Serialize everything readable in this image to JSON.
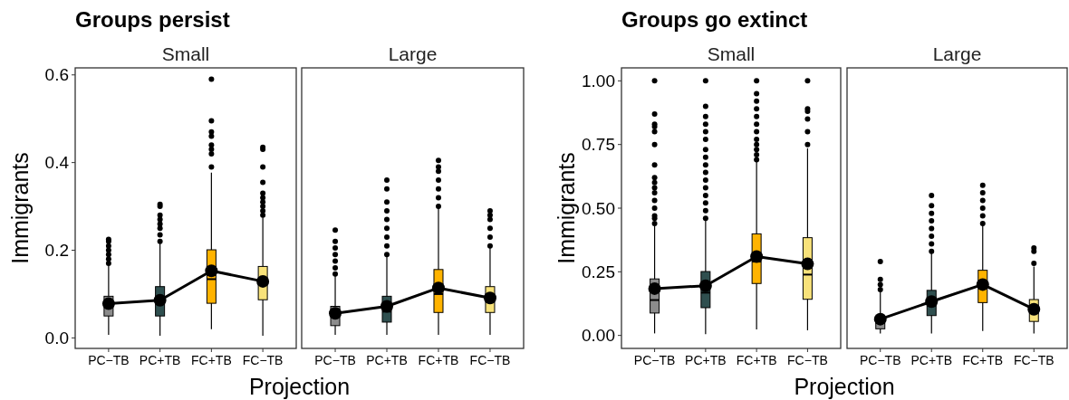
{
  "chart_data": [
    {
      "type": "box",
      "title": "Groups persist",
      "subtitle": "Small",
      "xlabel": "Projection",
      "ylabel": "Immigrants",
      "categories": [
        "PC−TB",
        "PC+TB",
        "FC+TB",
        "FC−TB"
      ],
      "ylim": [
        -0.024,
        0.616
      ],
      "yticks": [
        {
          "value": 0,
          "label": "0.0"
        },
        {
          "value": 0.2,
          "label": "0.2"
        },
        {
          "value": 0.4,
          "label": "0.4"
        },
        {
          "value": 0.6,
          "label": "0.6"
        }
      ],
      "grid": false,
      "colors": [
        "#8c8c8c",
        "#2f4f4f",
        "#ffb300",
        "#f8e27a"
      ],
      "boxes": [
        {
          "low": 0.007,
          "q1": 0.05,
          "median": 0.07,
          "q3": 0.095,
          "high": 0.165,
          "outliers": [
            0.17,
            0.18,
            0.19,
            0.2,
            0.21,
            0.22,
            0.225
          ]
        },
        {
          "low": 0.005,
          "q1": 0.05,
          "median": 0.085,
          "q3": 0.117,
          "high": 0.217,
          "outliers": [
            0.22,
            0.235,
            0.25,
            0.26,
            0.27,
            0.28,
            0.3,
            0.305
          ]
        },
        {
          "low": 0.02,
          "q1": 0.079,
          "median": 0.134,
          "q3": 0.201,
          "high": 0.377,
          "outliers": [
            0.39,
            0.42,
            0.43,
            0.44,
            0.46,
            0.47,
            0.495,
            0.59
          ]
        },
        {
          "low": 0.005,
          "q1": 0.087,
          "median": 0.125,
          "q3": 0.163,
          "high": 0.275,
          "outliers": [
            0.28,
            0.29,
            0.3,
            0.31,
            0.32,
            0.33,
            0.355,
            0.39,
            0.43,
            0.435
          ]
        }
      ],
      "series": [
        {
          "type": "line",
          "color": "#000000",
          "marker": "circle",
          "values": [
            0.078,
            0.086,
            0.153,
            0.129
          ]
        }
      ]
    },
    {
      "type": "box",
      "subtitle": "Large",
      "categories": [
        "PC−TB",
        "PC+TB",
        "FC+TB",
        "FC−TB"
      ],
      "ylim": [
        -0.024,
        0.616
      ],
      "tick_labels": "x",
      "grid": false,
      "colors": [
        "#8c8c8c",
        "#2f4f4f",
        "#ffb300",
        "#f8e27a"
      ],
      "boxes": [
        {
          "low": 0.007,
          "q1": 0.028,
          "median": 0.05,
          "q3": 0.072,
          "high": 0.141,
          "outliers": [
            0.146,
            0.16,
            0.175,
            0.19,
            0.205,
            0.22,
            0.246
          ]
        },
        {
          "low": 0.007,
          "q1": 0.036,
          "median": 0.06,
          "q3": 0.095,
          "high": 0.189,
          "outliers": [
            0.19,
            0.21,
            0.23,
            0.25,
            0.27,
            0.29,
            0.31,
            0.34,
            0.36
          ]
        },
        {
          "low": 0.007,
          "q1": 0.058,
          "median": 0.1,
          "q3": 0.156,
          "high": 0.3,
          "outliers": [
            0.3,
            0.32,
            0.34,
            0.36,
            0.38,
            0.39,
            0.405
          ]
        },
        {
          "low": 0.007,
          "q1": 0.058,
          "median": 0.09,
          "q3": 0.117,
          "high": 0.21,
          "outliers": [
            0.21,
            0.23,
            0.25,
            0.27,
            0.28,
            0.29
          ]
        }
      ],
      "series": [
        {
          "type": "line",
          "color": "#000000",
          "marker": "circle",
          "values": [
            0.056,
            0.072,
            0.114,
            0.091
          ]
        }
      ]
    },
    {
      "type": "box",
      "title": "Groups go extinct",
      "subtitle": "Small",
      "xlabel": "Projection",
      "ylabel": "Immigrants",
      "categories": [
        "PC−TB",
        "PC+TB",
        "FC+TB",
        "FC−TB"
      ],
      "ylim": [
        -0.051,
        1.051
      ],
      "yticks": [
        {
          "value": 0,
          "label": "0.00"
        },
        {
          "value": 0.25,
          "label": "0.25"
        },
        {
          "value": 0.5,
          "label": "0.50"
        },
        {
          "value": 0.75,
          "label": "0.75"
        },
        {
          "value": 1,
          "label": "1.00"
        }
      ],
      "grid": false,
      "colors": [
        "#8c8c8c",
        "#2f4f4f",
        "#ffb300",
        "#f8e27a"
      ],
      "boxes": [
        {
          "low": 0.008,
          "q1": 0.088,
          "median": 0.139,
          "q3": 0.222,
          "high": 0.43,
          "outliers": [
            0.44,
            0.46,
            0.47,
            0.5,
            0.53,
            0.56,
            0.58,
            0.6,
            0.62,
            0.67,
            0.75,
            0.8,
            0.82,
            0.83,
            0.87,
            1.0
          ]
        },
        {
          "low": 0.005,
          "q1": 0.109,
          "median": 0.168,
          "q3": 0.251,
          "high": 0.455,
          "outliers": [
            0.46,
            0.49,
            0.52,
            0.55,
            0.58,
            0.61,
            0.64,
            0.67,
            0.7,
            0.73,
            0.77,
            0.8,
            0.83,
            0.86,
            0.9,
            1.0
          ]
        },
        {
          "low": 0.024,
          "q1": 0.204,
          "median": 0.29,
          "q3": 0.399,
          "high": 0.684,
          "outliers": [
            0.69,
            0.71,
            0.73,
            0.75,
            0.77,
            0.8,
            0.83,
            0.86,
            0.89,
            0.92,
            0.95,
            1.0
          ]
        },
        {
          "low": 0.02,
          "q1": 0.142,
          "median": 0.239,
          "q3": 0.384,
          "high": 0.735,
          "outliers": [
            0.75,
            0.8,
            0.85,
            0.88,
            0.89,
            1.0
          ]
        }
      ],
      "series": [
        {
          "type": "line",
          "color": "#000000",
          "marker": "circle",
          "values": [
            0.184,
            0.195,
            0.31,
            0.281
          ]
        }
      ]
    },
    {
      "type": "box",
      "subtitle": "Large",
      "categories": [
        "PC−TB",
        "PC+TB",
        "FC+TB",
        "FC−TB"
      ],
      "ylim": [
        -0.051,
        1.051
      ],
      "tick_labels": "x",
      "grid": false,
      "colors": [
        "#8c8c8c",
        "#2f4f4f",
        "#ffb300",
        "#f8e27a"
      ],
      "boxes": [
        {
          "low": 0.008,
          "q1": 0.026,
          "median": 0.05,
          "q3": 0.073,
          "high": 0.174,
          "outliers": [
            0.18,
            0.2,
            0.22,
            0.29
          ]
        },
        {
          "low": 0.008,
          "q1": 0.078,
          "median": 0.13,
          "q3": 0.177,
          "high": 0.322,
          "outliers": [
            0.33,
            0.36,
            0.39,
            0.42,
            0.45,
            0.48,
            0.51,
            0.55
          ]
        },
        {
          "low": 0.017,
          "q1": 0.129,
          "median": 0.2,
          "q3": 0.256,
          "high": 0.435,
          "outliers": [
            0.44,
            0.47,
            0.5,
            0.53,
            0.56,
            0.59
          ]
        },
        {
          "low": 0.008,
          "q1": 0.055,
          "median": 0.09,
          "q3": 0.141,
          "high": 0.271,
          "outliers": [
            0.283,
            0.33,
            0.344
          ]
        }
      ],
      "series": [
        {
          "type": "line",
          "color": "#000000",
          "marker": "circle",
          "values": [
            0.064,
            0.133,
            0.2,
            0.103
          ]
        }
      ]
    }
  ]
}
